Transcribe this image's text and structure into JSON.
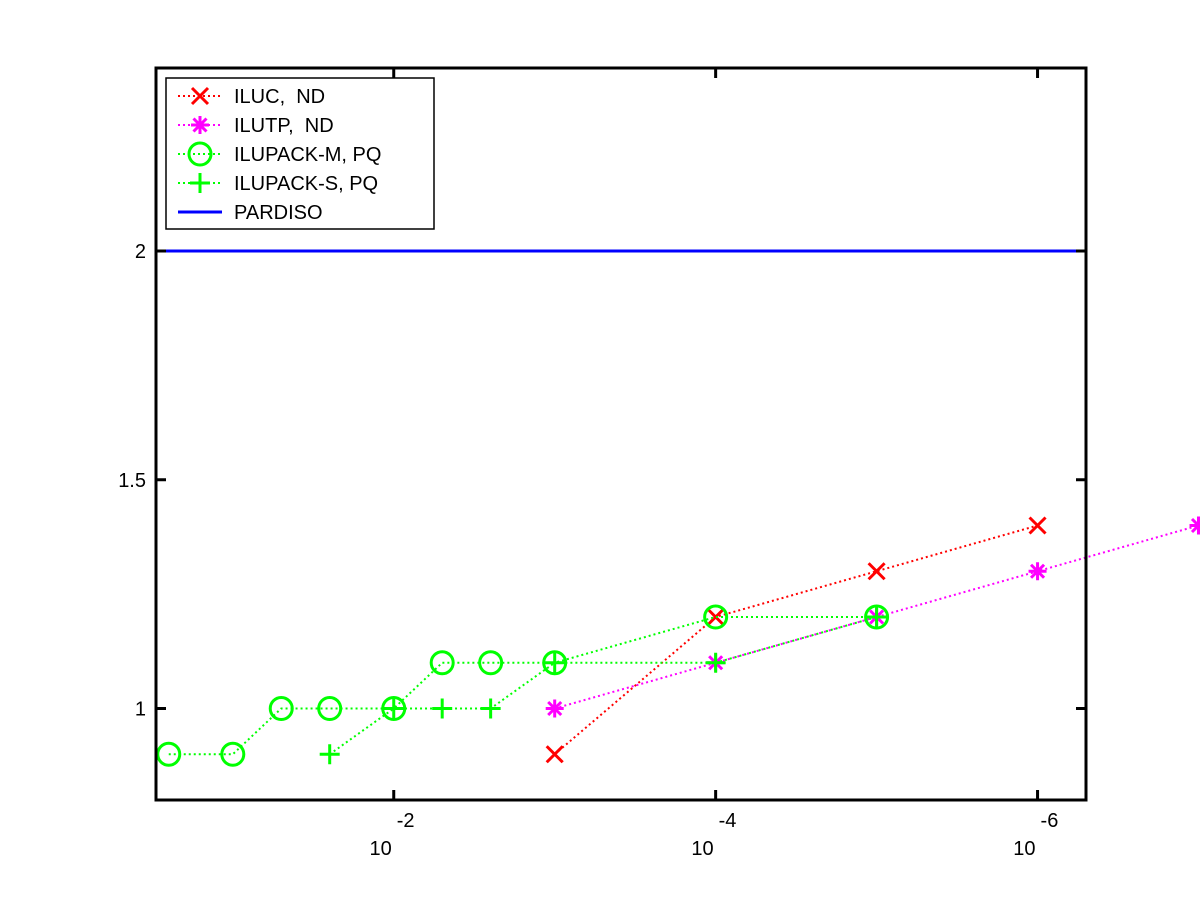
{
  "chart_data": {
    "type": "line",
    "title": "",
    "xlabel": "",
    "ylabel": "",
    "xscale": "log",
    "xaxis_reversed": true,
    "xlim": [
      0.3,
      5e-07
    ],
    "ylim": [
      0.8,
      2.4
    ],
    "xticks": [
      {
        "value": 0.01,
        "base": "10",
        "exp": "-2"
      },
      {
        "value": 0.0001,
        "base": "10",
        "exp": "-4"
      },
      {
        "value": 1e-06,
        "base": "10",
        "exp": "-6"
      }
    ],
    "yticks": [
      {
        "value": 1,
        "label": "1"
      },
      {
        "value": 1.5,
        "label": "1.5"
      },
      {
        "value": 2,
        "label": "2"
      }
    ],
    "grid": false,
    "legend_position": "top-left",
    "series": [
      {
        "name": "ILUC,  ND",
        "color": "#ff0000",
        "marker": "x",
        "linestyle": "dotted",
        "x": [
          0.001,
          0.0001,
          1e-05,
          1e-06
        ],
        "y": [
          0.9,
          1.2,
          1.3,
          1.4
        ]
      },
      {
        "name": "ILUTP,  ND",
        "color": "#ff00ff",
        "marker": "asterisk",
        "linestyle": "dotted",
        "x": [
          0.001,
          0.0001,
          1e-05,
          1e-06,
          1e-07
        ],
        "y": [
          1.0,
          1.1,
          1.2,
          1.3,
          1.4
        ]
      },
      {
        "name": "ILUPACK-M, PQ",
        "color": "#00ff00",
        "marker": "circle",
        "linestyle": "dotted",
        "x": [
          0.25,
          0.1,
          0.05,
          0.025,
          0.01,
          0.005,
          0.0025,
          0.001,
          0.0001,
          1e-05
        ],
        "y": [
          0.9,
          0.9,
          1.0,
          1.0,
          1.0,
          1.1,
          1.1,
          1.1,
          1.2,
          1.2
        ]
      },
      {
        "name": "ILUPACK-S, PQ",
        "color": "#00ff00",
        "marker": "plus",
        "linestyle": "dotted",
        "x": [
          0.025,
          0.01,
          0.005,
          0.0025,
          0.001,
          0.0001,
          1e-05
        ],
        "y": [
          0.9,
          1.0,
          1.0,
          1.0,
          1.1,
          1.1,
          1.2
        ]
      },
      {
        "name": "PARDISO",
        "color": "#0000ff",
        "marker": "none",
        "linestyle": "solid",
        "y_constant": 2.0
      }
    ]
  }
}
